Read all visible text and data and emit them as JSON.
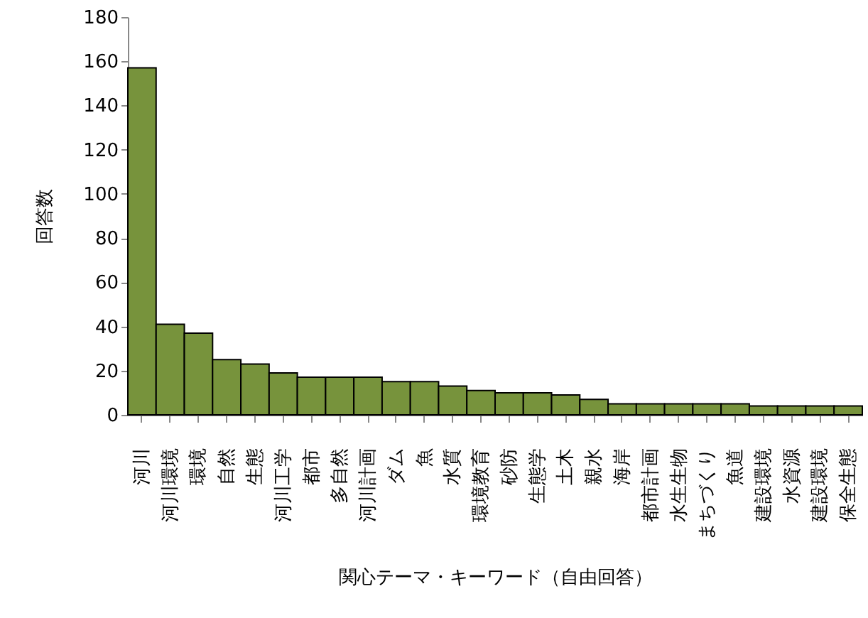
{
  "chart_data": {
    "type": "bar",
    "xlabel": "関心テーマ・キーワード（自由回答）",
    "ylabel": "回答数",
    "categories": [
      "河川",
      "河川環境",
      "環境",
      "自然",
      "生態",
      "河川工学",
      "都市",
      "多自然",
      "河川計画",
      "ダム",
      "魚",
      "水質",
      "環境教育",
      "砂防",
      "生態学",
      "土木",
      "親水",
      "海岸",
      "都市計画",
      "水生生物",
      "まちづくり",
      "魚道",
      "建設環境",
      "水資源",
      "建設環境",
      "保全生態"
    ],
    "values": [
      157,
      41,
      37,
      25,
      23,
      19,
      17,
      17,
      17,
      15,
      15,
      13,
      11,
      10,
      10,
      9,
      7,
      5,
      5,
      5,
      5,
      5,
      4,
      4,
      4,
      4
    ],
    "color": "#77933c",
    "ylim": [
      0,
      180
    ],
    "yticks": [
      0,
      20,
      40,
      60,
      80,
      100,
      120,
      140,
      160,
      180
    ],
    "grid": false
  }
}
